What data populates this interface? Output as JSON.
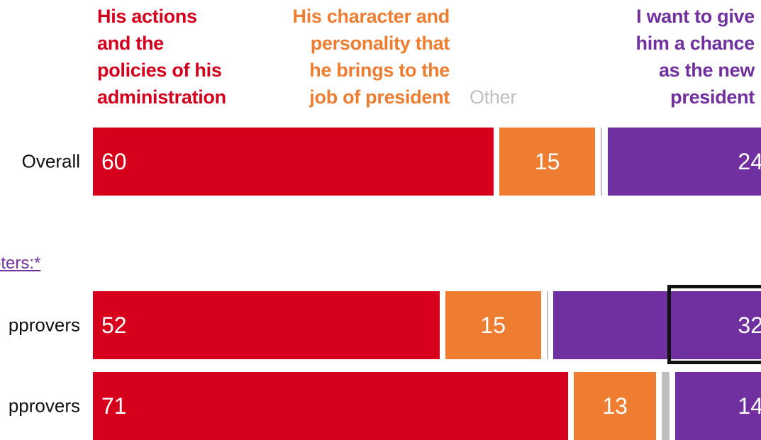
{
  "chart_data": {
    "type": "bar",
    "orientation": "horizontal",
    "stacked": true,
    "legend_placement": "top",
    "series": [
      {
        "name": "His actions\nand the\npolicies of his\nadministration",
        "color": "#d7001c",
        "values": [
          60,
          52,
          71
        ]
      },
      {
        "name": "His character and\npersonality that\nhe brings to the\njob of president",
        "color": "#ee7d31",
        "values": [
          15,
          15,
          13
        ]
      },
      {
        "name": "Other",
        "color": "#bfbfbf",
        "values": [
          1,
          1,
          2
        ]
      },
      {
        "name": "I want to give\nhim a chance\nas the new\npresident",
        "color": "#7030a0",
        "values": [
          24,
          32,
          14
        ]
      }
    ],
    "rows": [
      {
        "label": "Overall",
        "show": [
          true,
          true,
          false,
          true
        ]
      },
      {
        "label": "pprovers",
        "show": [
          true,
          true,
          false,
          true
        ]
      },
      {
        "label": "pprovers",
        "show": [
          true,
          true,
          false,
          true
        ]
      }
    ],
    "group_label": "oters:*",
    "highlight": {
      "row": 1,
      "series": 3
    }
  }
}
